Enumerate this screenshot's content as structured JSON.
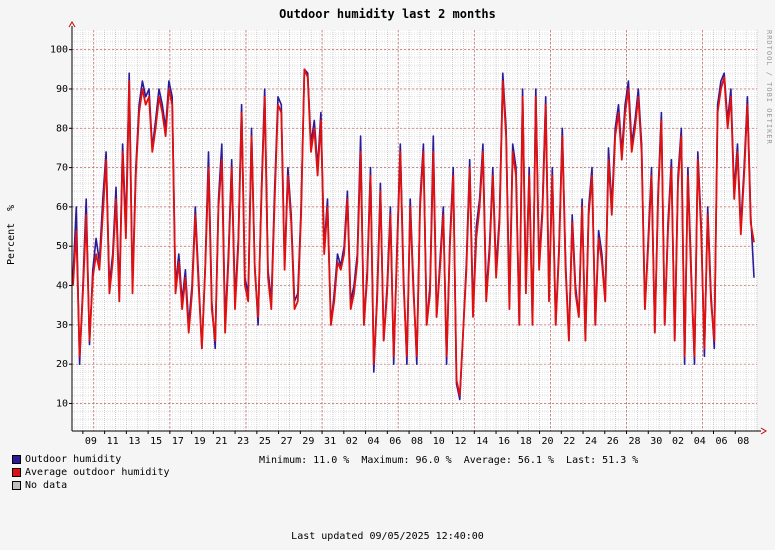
{
  "chart_data": {
    "type": "line",
    "title": "Outdoor humidity last 2 months",
    "ylabel": "Percent  %",
    "credit": "RRDTOOL / TOBI OETIKER",
    "ylim": [
      3,
      105
    ],
    "yticks": [
      10,
      20,
      30,
      40,
      50,
      60,
      70,
      80,
      90,
      100
    ],
    "xticks": [
      "09",
      "11",
      "13",
      "15",
      "17",
      "19",
      "21",
      "23",
      "25",
      "27",
      "29",
      "31",
      "02",
      "04",
      "06",
      "08",
      "10",
      "12",
      "14",
      "16",
      "18",
      "20",
      "22",
      "24",
      "26",
      "28",
      "30",
      "02",
      "04",
      "06",
      "08"
    ],
    "x_range_days": [
      "2025-07-08",
      "2025-09-09"
    ],
    "major_gridlines": [
      "2025-07-10",
      "2025-07-17",
      "2025-07-24",
      "2025-07-31",
      "2025-08-07",
      "2025-08-14",
      "2025-08-21",
      "2025-08-28",
      "2025-09-04"
    ],
    "grid": true,
    "legend_position": "bottom-left",
    "series": [
      {
        "name": "Outdoor humidity",
        "color": "#2a1a9a",
        "values": [
          42,
          60,
          20,
          40,
          62,
          25,
          44,
          52,
          46,
          62,
          74,
          40,
          48,
          65,
          38,
          76,
          55,
          94,
          40,
          70,
          86,
          92,
          88,
          90,
          75,
          82,
          90,
          86,
          80,
          92,
          88,
          40,
          48,
          36,
          44,
          30,
          40,
          60,
          42,
          24,
          45,
          74,
          36,
          24,
          62,
          76,
          30,
          48,
          72,
          36,
          52,
          86,
          42,
          38,
          80,
          45,
          30,
          64,
          90,
          44,
          36,
          65,
          88,
          86,
          45,
          70,
          58,
          36,
          38,
          60,
          95,
          94,
          76,
          82,
          70,
          84,
          50,
          62,
          30,
          38,
          48,
          45,
          50,
          64,
          36,
          40,
          48,
          78,
          30,
          44,
          70,
          18,
          38,
          66,
          26,
          40,
          60,
          20,
          50,
          76,
          42,
          20,
          62,
          40,
          20,
          62,
          76,
          30,
          40,
          78,
          32,
          46,
          60,
          20,
          52,
          70,
          15,
          11,
          28,
          46,
          72,
          34,
          55,
          62,
          76,
          38,
          50,
          70,
          44,
          58,
          94,
          80,
          36,
          76,
          70,
          30,
          90,
          40,
          70,
          30,
          90,
          46,
          60,
          88,
          38,
          70,
          30,
          50,
          80,
          46,
          26,
          58,
          40,
          32,
          62,
          26,
          60,
          70,
          30,
          54,
          48,
          36,
          75,
          60,
          80,
          86,
          74,
          86,
          92,
          76,
          82,
          90,
          76,
          34,
          52,
          70,
          28,
          64,
          84,
          30,
          56,
          72,
          26,
          68,
          80,
          20,
          70,
          44,
          20,
          74,
          56,
          22,
          60,
          38,
          24,
          86,
          92,
          94,
          82,
          90,
          64,
          76,
          55,
          70,
          88,
          58,
          42
        ],
        "style": "spikes"
      },
      {
        "name": "Average outdoor humidity",
        "color": "#e01010",
        "values": [
          40,
          54,
          22,
          38,
          58,
          26,
          42,
          48,
          44,
          58,
          72,
          38,
          46,
          62,
          36,
          74,
          52,
          92,
          38,
          68,
          84,
          90,
          86,
          88,
          74,
          80,
          88,
          84,
          78,
          90,
          86,
          38,
          46,
          34,
          42,
          28,
          38,
          58,
          40,
          24,
          44,
          70,
          34,
          26,
          60,
          72,
          28,
          46,
          70,
          34,
          50,
          84,
          40,
          36,
          78,
          44,
          32,
          62,
          88,
          42,
          34,
          62,
          86,
          84,
          44,
          68,
          56,
          34,
          36,
          58,
          95,
          93,
          74,
          80,
          68,
          82,
          48,
          60,
          30,
          36,
          46,
          44,
          48,
          62,
          34,
          38,
          46,
          74,
          30,
          42,
          68,
          20,
          36,
          64,
          26,
          38,
          58,
          22,
          48,
          74,
          40,
          22,
          60,
          38,
          22,
          60,
          74,
          30,
          38,
          74,
          32,
          44,
          58,
          22,
          50,
          68,
          16,
          12,
          28,
          44,
          70,
          32,
          52,
          60,
          74,
          36,
          48,
          68,
          42,
          56,
          92,
          78,
          34,
          74,
          68,
          30,
          88,
          38,
          68,
          30,
          88,
          44,
          58,
          86,
          36,
          68,
          30,
          48,
          78,
          44,
          26,
          56,
          38,
          32,
          60,
          26,
          58,
          68,
          30,
          52,
          46,
          36,
          72,
          58,
          78,
          84,
          72,
          84,
          90,
          74,
          80,
          88,
          74,
          34,
          50,
          68,
          28,
          62,
          82,
          30,
          54,
          70,
          26,
          66,
          78,
          22,
          68,
          42,
          22,
          72,
          54,
          24,
          58,
          36,
          26,
          84,
          90,
          93,
          80,
          88,
          62,
          74,
          53,
          68,
          86,
          56,
          51
        ]
      }
    ],
    "no_data_label": "No data"
  },
  "legend": {
    "items": [
      {
        "label": "Outdoor humidity",
        "color": "#2a1a9a"
      },
      {
        "label": "Average outdoor humidity",
        "color": "#e01010"
      },
      {
        "label": "No data",
        "color": "#c0c0c0"
      }
    ]
  },
  "stats": {
    "text": "Minimum: 11.0 %  Maximum: 96.0 %  Average: 56.1 %  Last: 51.3 %"
  },
  "footer": {
    "updated": "Last updated 09/05/2025 12:40:00"
  }
}
